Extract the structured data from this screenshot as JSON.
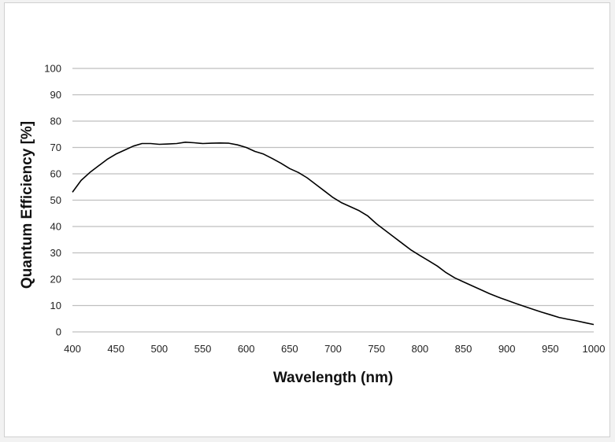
{
  "chart_data": {
    "type": "line",
    "xlabel": "Wavelength (nm)",
    "ylabel": "Quantum Efficiency [%]",
    "xlim": [
      400,
      1000
    ],
    "ylim": [
      0,
      100
    ],
    "x_ticks": [
      "400",
      "450",
      "500",
      "550",
      "600",
      "650",
      "700",
      "750",
      "800",
      "850",
      "900",
      "950",
      "1000"
    ],
    "y_ticks": [
      "0",
      "10",
      "20",
      "30",
      "40",
      "50",
      "60",
      "70",
      "80",
      "90",
      "100"
    ],
    "grid": "horizontal",
    "line_color": "#000000",
    "grid_color": "#bfbfbf",
    "series": [
      {
        "x": [
          400,
          410,
          420,
          430,
          440,
          450,
          460,
          470,
          480,
          490,
          500,
          510,
          520,
          530,
          540,
          550,
          560,
          570,
          580,
          590,
          600,
          610,
          620,
          630,
          640,
          650,
          660,
          670,
          680,
          690,
          700,
          710,
          720,
          730,
          740,
          750,
          760,
          770,
          780,
          790,
          800,
          810,
          820,
          830,
          840,
          850,
          860,
          870,
          880,
          890,
          900,
          910,
          920,
          930,
          940,
          950,
          960,
          970,
          980,
          990,
          1000
        ],
        "values": [
          53,
          57.5,
          60.5,
          63,
          65.5,
          67.5,
          69,
          70.5,
          71.5,
          71.5,
          71.2,
          71.3,
          71.5,
          72,
          71.8,
          71.5,
          71.6,
          71.7,
          71.6,
          71,
          70,
          68.5,
          67.5,
          65.8,
          64,
          62,
          60.5,
          58.5,
          56,
          53.5,
          51,
          49,
          47.5,
          46,
          44,
          41,
          38.5,
          36,
          33.5,
          31,
          29,
          27,
          25,
          22.5,
          20.5,
          19,
          17.5,
          16,
          14.5,
          13.2,
          12,
          10.8,
          9.7,
          8.6,
          7.5,
          6.5,
          5.5,
          4.8,
          4.2,
          3.5,
          2.8
        ]
      }
    ]
  }
}
